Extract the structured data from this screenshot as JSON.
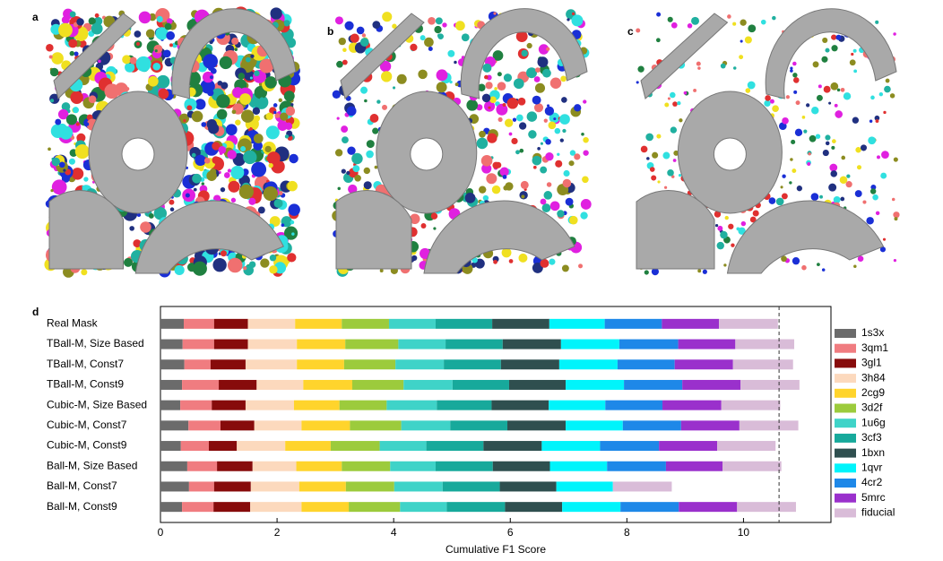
{
  "panel_labels": [
    "a",
    "b",
    "c"
  ],
  "chart_data": {
    "type": "stacked-barh",
    "panel_label": "d",
    "x_label": "Cumulative F1 Score",
    "categories": [
      "Real Mask",
      "TBall-M, Size Based",
      "TBall-M, Const7",
      "TBall-M, Const9",
      "Cubic-M, Size Based",
      "Cubic-M, Const7",
      "Cubic-M, Const9",
      "Ball-M, Size Based",
      "Ball-M, Const7",
      "Ball-M, Const9"
    ],
    "series": [
      {
        "name": "1s3x",
        "color": "#6b6b6b",
        "values": [
          0.4,
          0.38,
          0.41,
          0.37,
          0.34,
          0.48,
          0.35,
          0.46,
          0.49,
          0.37
        ]
      },
      {
        "name": "3qm1",
        "color": "#f07c80",
        "values": [
          0.52,
          0.54,
          0.45,
          0.63,
          0.54,
          0.55,
          0.48,
          0.51,
          0.43,
          0.54
        ]
      },
      {
        "name": "3gl1",
        "color": "#870b0b",
        "values": [
          0.58,
          0.58,
          0.6,
          0.65,
          0.58,
          0.58,
          0.48,
          0.61,
          0.63,
          0.63
        ]
      },
      {
        "name": "3h84",
        "color": "#fcd9bd",
        "values": [
          0.81,
          0.84,
          0.88,
          0.8,
          0.83,
          0.81,
          0.83,
          0.75,
          0.83,
          0.88
        ]
      },
      {
        "name": "2cg9",
        "color": "#ffd42c",
        "values": [
          0.8,
          0.83,
          0.81,
          0.84,
          0.78,
          0.83,
          0.78,
          0.78,
          0.8,
          0.81
        ]
      },
      {
        "name": "3d2f",
        "color": "#9ccb3c",
        "values": [
          0.81,
          0.91,
          0.88,
          0.88,
          0.81,
          0.88,
          0.84,
          0.83,
          0.83,
          0.88
        ]
      },
      {
        "name": "1u6g",
        "color": "#3fd3c8",
        "values": [
          0.8,
          0.81,
          0.83,
          0.84,
          0.86,
          0.84,
          0.8,
          0.78,
          0.83,
          0.8
        ]
      },
      {
        "name": "3cf3",
        "color": "#17a99b",
        "values": [
          0.97,
          0.98,
          0.98,
          0.97,
          0.94,
          0.98,
          0.98,
          0.98,
          0.98,
          1.0
        ]
      },
      {
        "name": "1bxn",
        "color": "#2f4f4f",
        "values": [
          0.98,
          1.0,
          1.0,
          0.97,
          0.98,
          1.0,
          1.0,
          0.98,
          0.97,
          0.98
        ]
      },
      {
        "name": "1qvr",
        "color": "#00f4fb",
        "values": [
          0.95,
          1.0,
          1.0,
          1.0,
          0.97,
          0.98,
          1.0,
          0.98,
          0.97,
          1.0
        ]
      },
      {
        "name": "4cr2",
        "color": "#1e88e8",
        "values": [
          0.98,
          1.01,
          0.98,
          1.0,
          0.98,
          1.0,
          1.01,
          1.01,
          null,
          1.0
        ]
      },
      {
        "name": "5mrc",
        "color": "#9a30cc",
        "values": [
          0.98,
          0.98,
          1.0,
          1.0,
          1.01,
          1.0,
          1.0,
          0.97,
          null,
          1.0
        ]
      },
      {
        "name": "fiducial",
        "color": "#d9bcd8",
        "values": [
          1.01,
          1.01,
          1.03,
          1.01,
          1.01,
          1.01,
          1.0,
          1.01,
          1.01,
          1.01
        ]
      }
    ],
    "xlim": [
      0,
      11.5
    ],
    "xticks": [
      0,
      2,
      4,
      6,
      8,
      10
    ],
    "reference_line": 10.61,
    "legend": "right"
  }
}
